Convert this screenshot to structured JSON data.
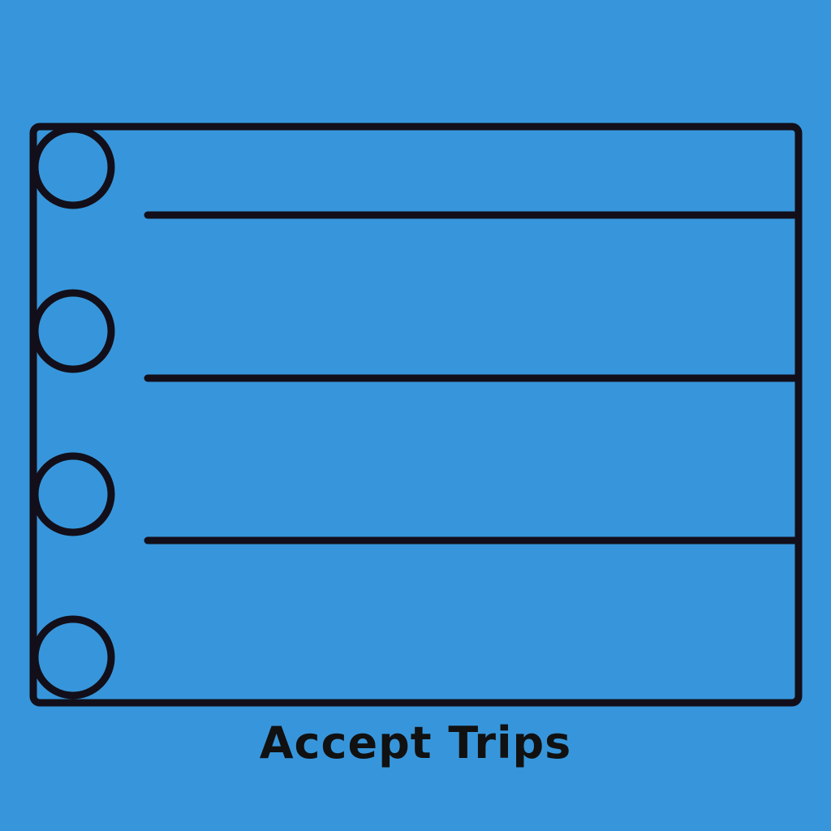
{
  "colors": {
    "background": "#3796db",
    "stroke": "#111111",
    "caption": "#111111"
  },
  "icon": {
    "name": "checklist-icon"
  },
  "caption": {
    "text": "Accept Trips"
  }
}
